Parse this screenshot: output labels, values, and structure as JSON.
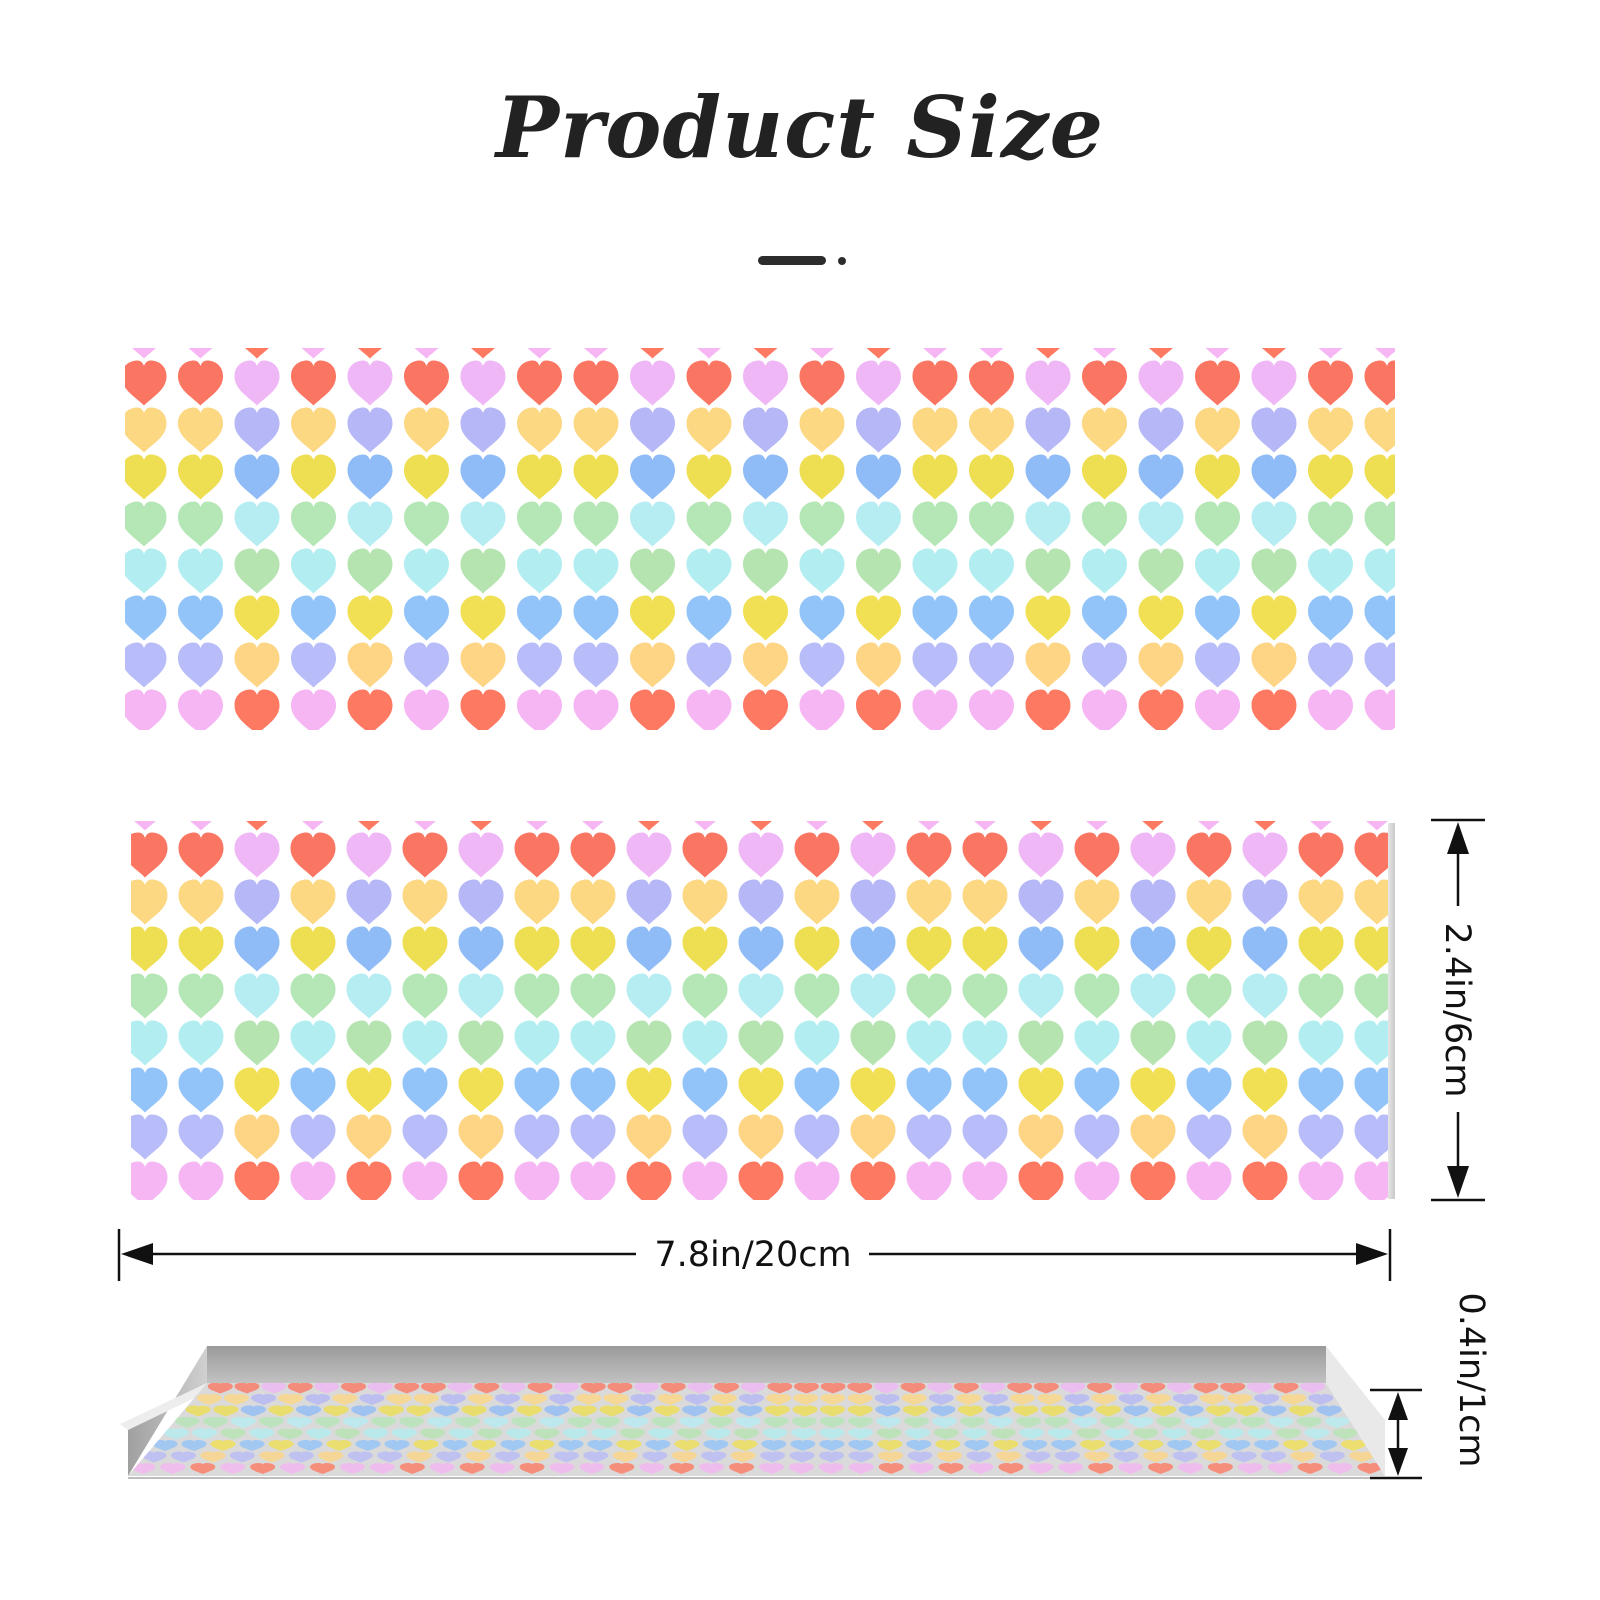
{
  "title": "Product Size",
  "dimensions": {
    "width": "7.8in/20cm",
    "height": "2.4in/6cm",
    "depth": "0.4in/1cm"
  },
  "colors": {
    "background": "#ffffff",
    "title": "#222222",
    "dimension_line": "#111111",
    "pattern_columns": {
      "A": [
        "#fb7662",
        "#fdd883",
        "#eede51",
        "#b4e6b6",
        "#b2eef1",
        "#92c3f9",
        "#b8bcf8",
        "#f6b6f3"
      ],
      "B": [
        "#f0b7f7",
        "#b5b7f7",
        "#8fbcf7",
        "#b6edf3",
        "#b6e4b1",
        "#f1e053",
        "#fdd584",
        "#fe7962"
      ],
      "C": [
        "#fc7560",
        "#fdd681",
        "#efdf4f",
        "#b2e6b6",
        "#b6edf3",
        "#8fbef4",
        "#b9bbf8",
        "#f2b9f6"
      ]
    }
  }
}
